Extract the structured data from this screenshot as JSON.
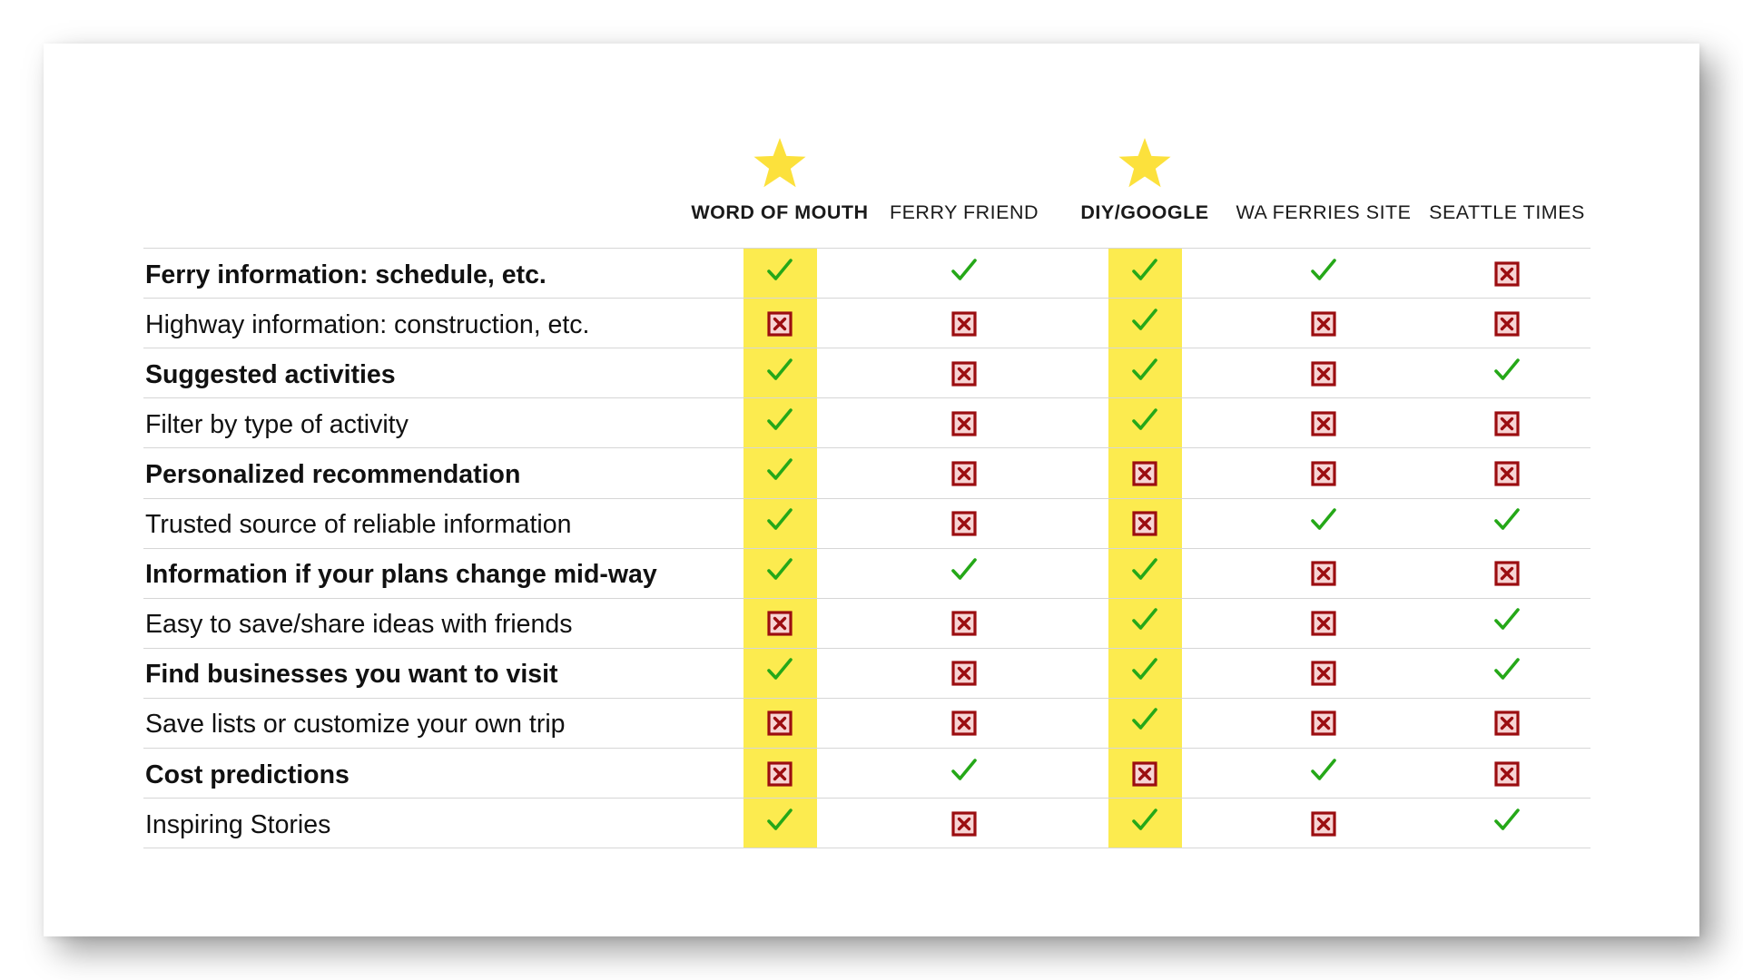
{
  "colors": {
    "highlight": "#FCEB4F",
    "star": "#FCE13C",
    "check": "#25A818",
    "cross": "#9B0D10",
    "cross_fill": "#F7D4D4"
  },
  "columns": [
    {
      "label": "WORD OF MOUTH",
      "starred": true,
      "highlighted": true,
      "bold": true
    },
    {
      "label": "FERRY FRIEND",
      "starred": false,
      "highlighted": false,
      "bold": false
    },
    {
      "label": "DIY/GOOGLE",
      "starred": true,
      "highlighted": true,
      "bold": true
    },
    {
      "label": "WA FERRIES SITE",
      "starred": false,
      "highlighted": false,
      "bold": false
    },
    {
      "label": "SEATTLE TIMES",
      "starred": false,
      "highlighted": false,
      "bold": false
    }
  ],
  "rows": [
    {
      "label": "Ferry information: schedule, etc.",
      "bold": true,
      "values": [
        "check",
        "check",
        "check",
        "check",
        "cross"
      ]
    },
    {
      "label": "Highway information: construction, etc.",
      "bold": false,
      "values": [
        "cross",
        "cross",
        "check",
        "cross",
        "cross"
      ]
    },
    {
      "label": "Suggested activities",
      "bold": true,
      "values": [
        "check",
        "cross",
        "check",
        "cross",
        "check"
      ]
    },
    {
      "label": "Filter by type of activity",
      "bold": false,
      "values": [
        "check",
        "cross",
        "check",
        "cross",
        "cross"
      ]
    },
    {
      "label": "Personalized recommendation",
      "bold": true,
      "values": [
        "check",
        "cross",
        "cross",
        "cross",
        "cross"
      ]
    },
    {
      "label": "Trusted source of reliable information",
      "bold": false,
      "values": [
        "check",
        "cross",
        "cross",
        "check",
        "check"
      ]
    },
    {
      "label": "Information if your plans change mid-way",
      "bold": true,
      "values": [
        "check",
        "check",
        "check",
        "cross",
        "cross"
      ]
    },
    {
      "label": "Easy to save/share ideas with friends",
      "bold": false,
      "values": [
        "cross",
        "cross",
        "check",
        "cross",
        "check"
      ]
    },
    {
      "label": "Find businesses you want to visit",
      "bold": true,
      "values": [
        "check",
        "cross",
        "check",
        "cross",
        "check"
      ]
    },
    {
      "label": "Save lists or customize your own trip",
      "bold": false,
      "values": [
        "cross",
        "cross",
        "check",
        "cross",
        "cross"
      ]
    },
    {
      "label": "Cost predictions",
      "bold": true,
      "values": [
        "cross",
        "check",
        "cross",
        "check",
        "cross"
      ]
    },
    {
      "label": "Inspiring Stories",
      "bold": false,
      "values": [
        "check",
        "cross",
        "check",
        "cross",
        "check"
      ]
    }
  ]
}
